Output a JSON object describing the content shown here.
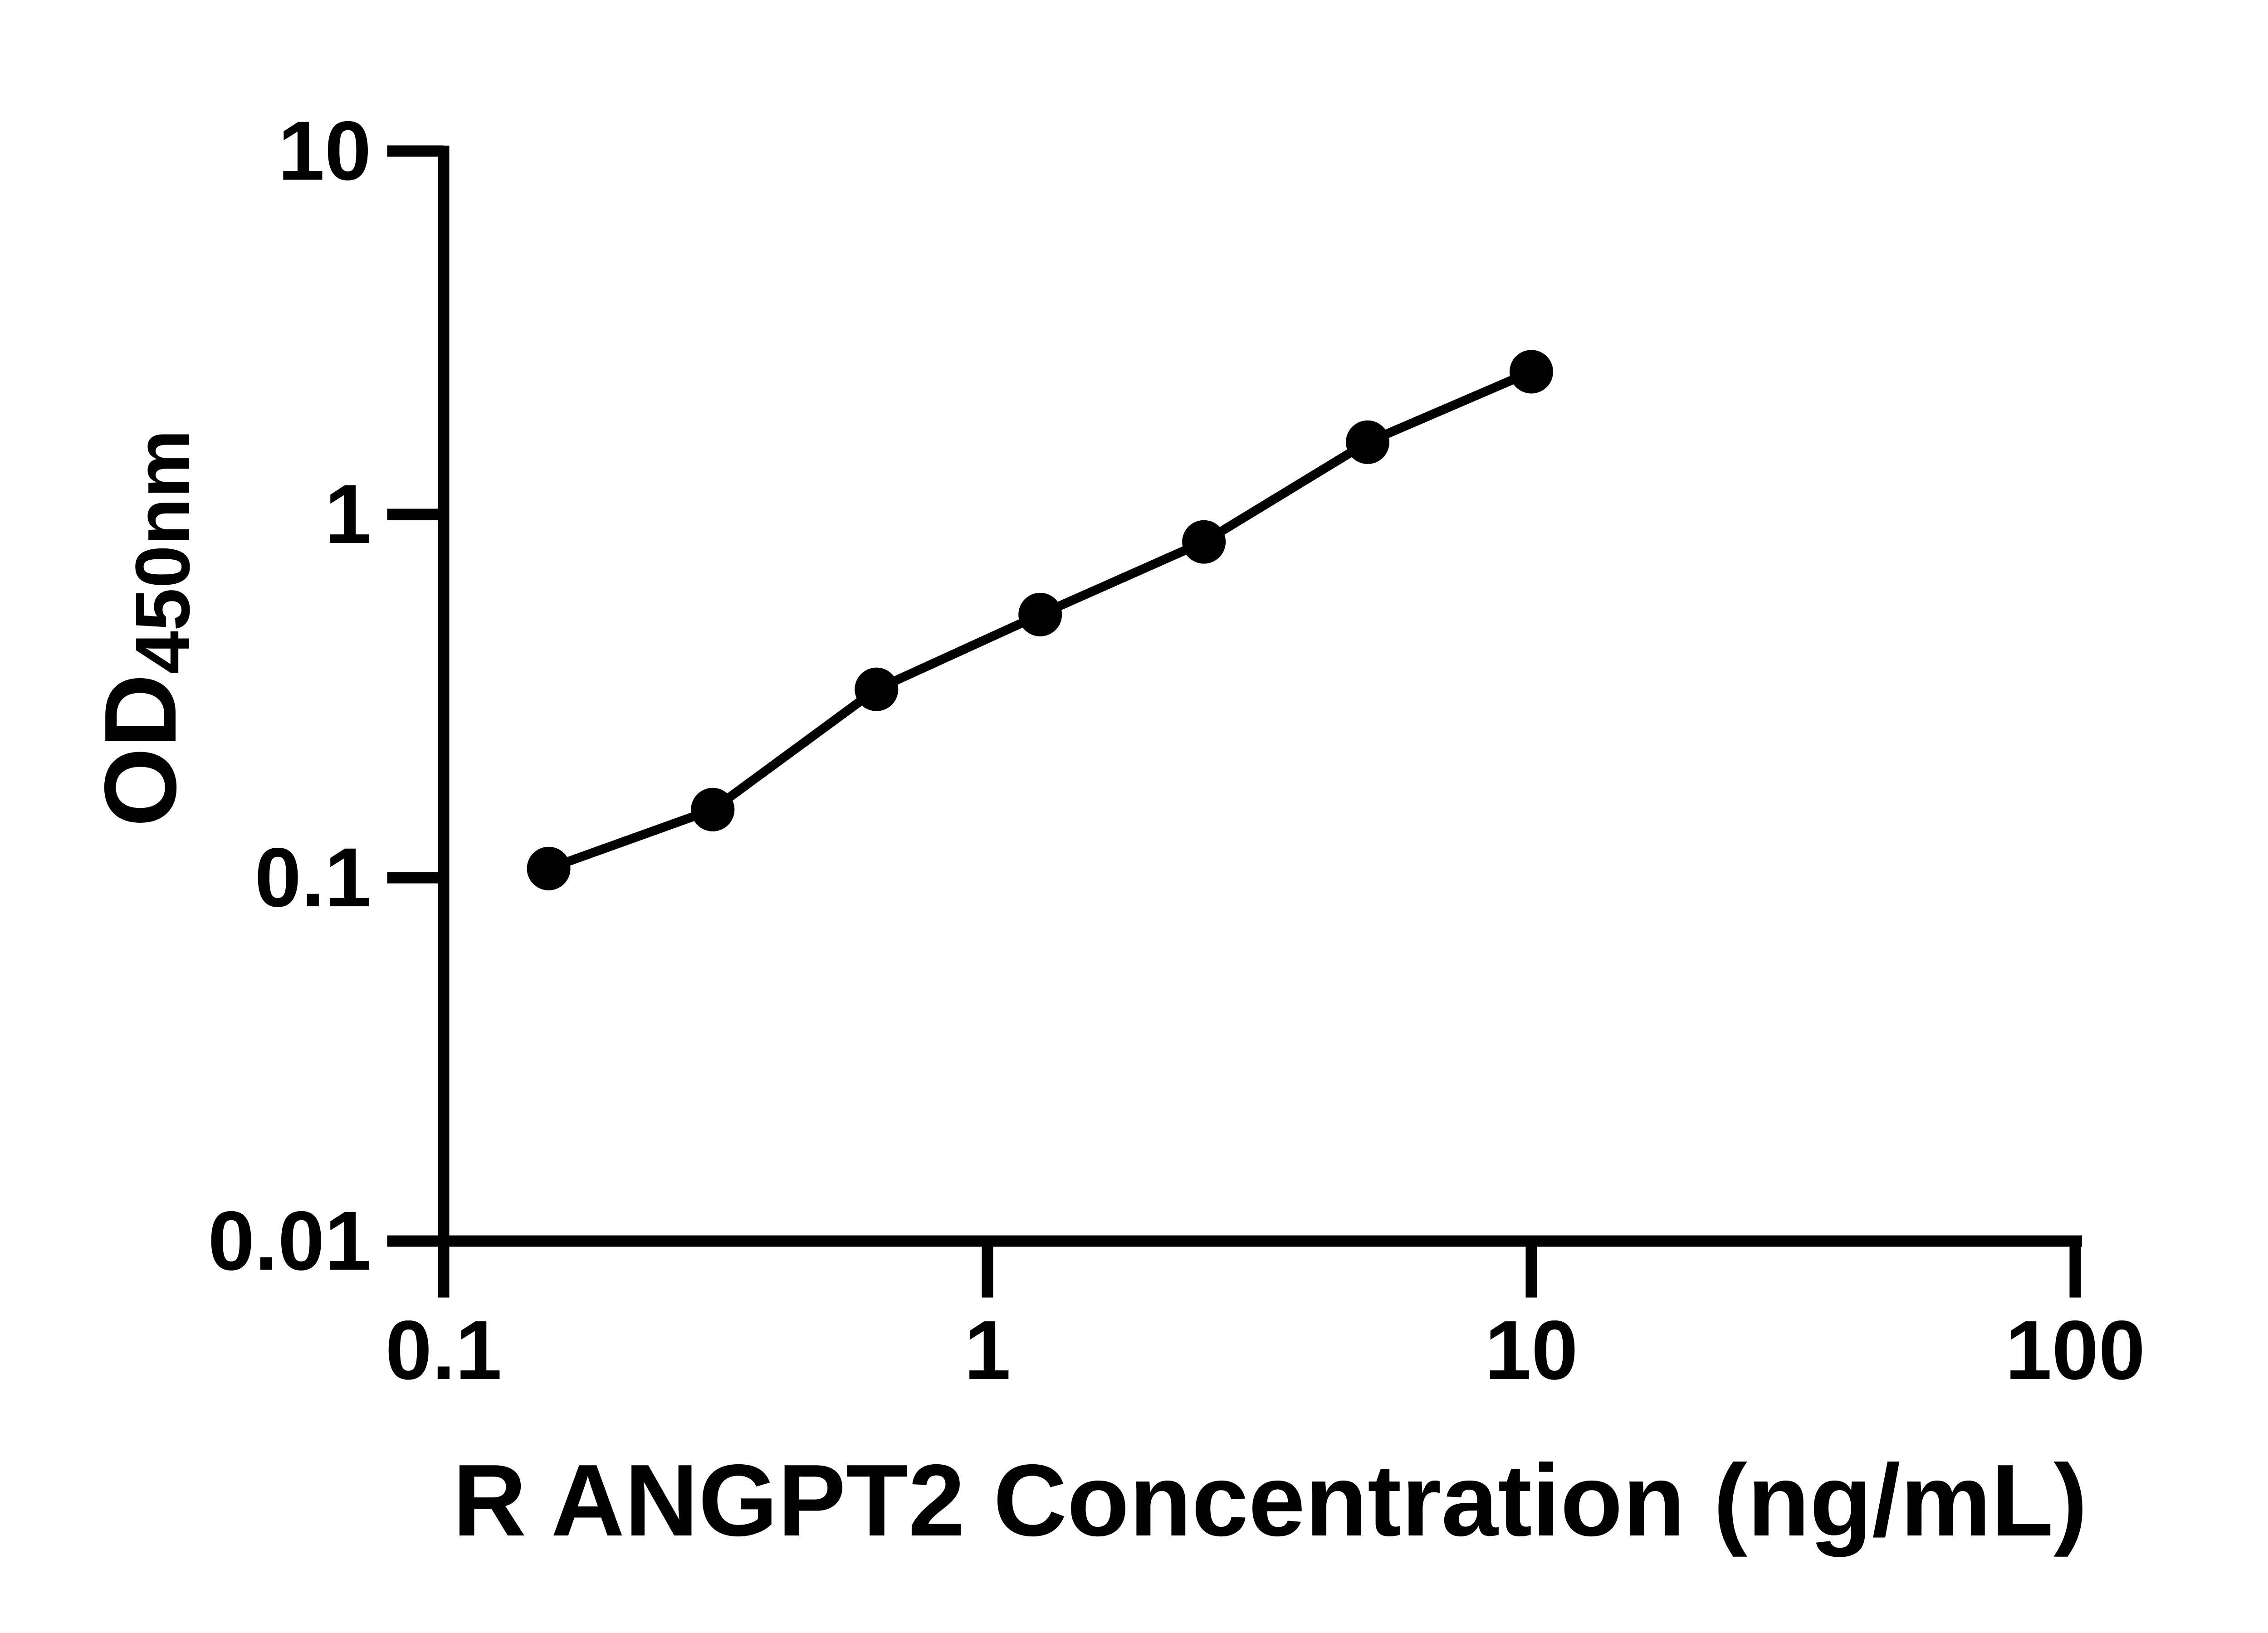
{
  "chart_data": {
    "type": "scatter",
    "title": "",
    "x": [
      0.156,
      0.3125,
      0.625,
      1.25,
      2.5,
      5,
      10
    ],
    "y": [
      0.106,
      0.154,
      0.33,
      0.53,
      0.84,
      1.58,
      2.47
    ],
    "connect_points": true,
    "x_scale": "log",
    "y_scale": "log",
    "xlim": [
      0.1,
      100
    ],
    "ylim": [
      0.01,
      10
    ],
    "xlabel": "R ANGPT2 Concentration (ng/mL)",
    "ylabel_main": "OD",
    "ylabel_sub": "450nm",
    "x_ticks": {
      "values": [
        0.1,
        1,
        10,
        100
      ],
      "labels": [
        "0.1",
        "1",
        "10",
        "100"
      ]
    },
    "y_ticks": {
      "values": [
        10,
        1,
        0.1,
        0.01
      ],
      "labels": [
        "10",
        "1",
        "0.1",
        "0.01"
      ]
    },
    "grid": false,
    "legend": null,
    "marker": {
      "shape": "circle",
      "color": "#000000"
    },
    "line_color": "#000000",
    "colors": {
      "foreground": "#000000",
      "background": "#ffffff"
    }
  }
}
